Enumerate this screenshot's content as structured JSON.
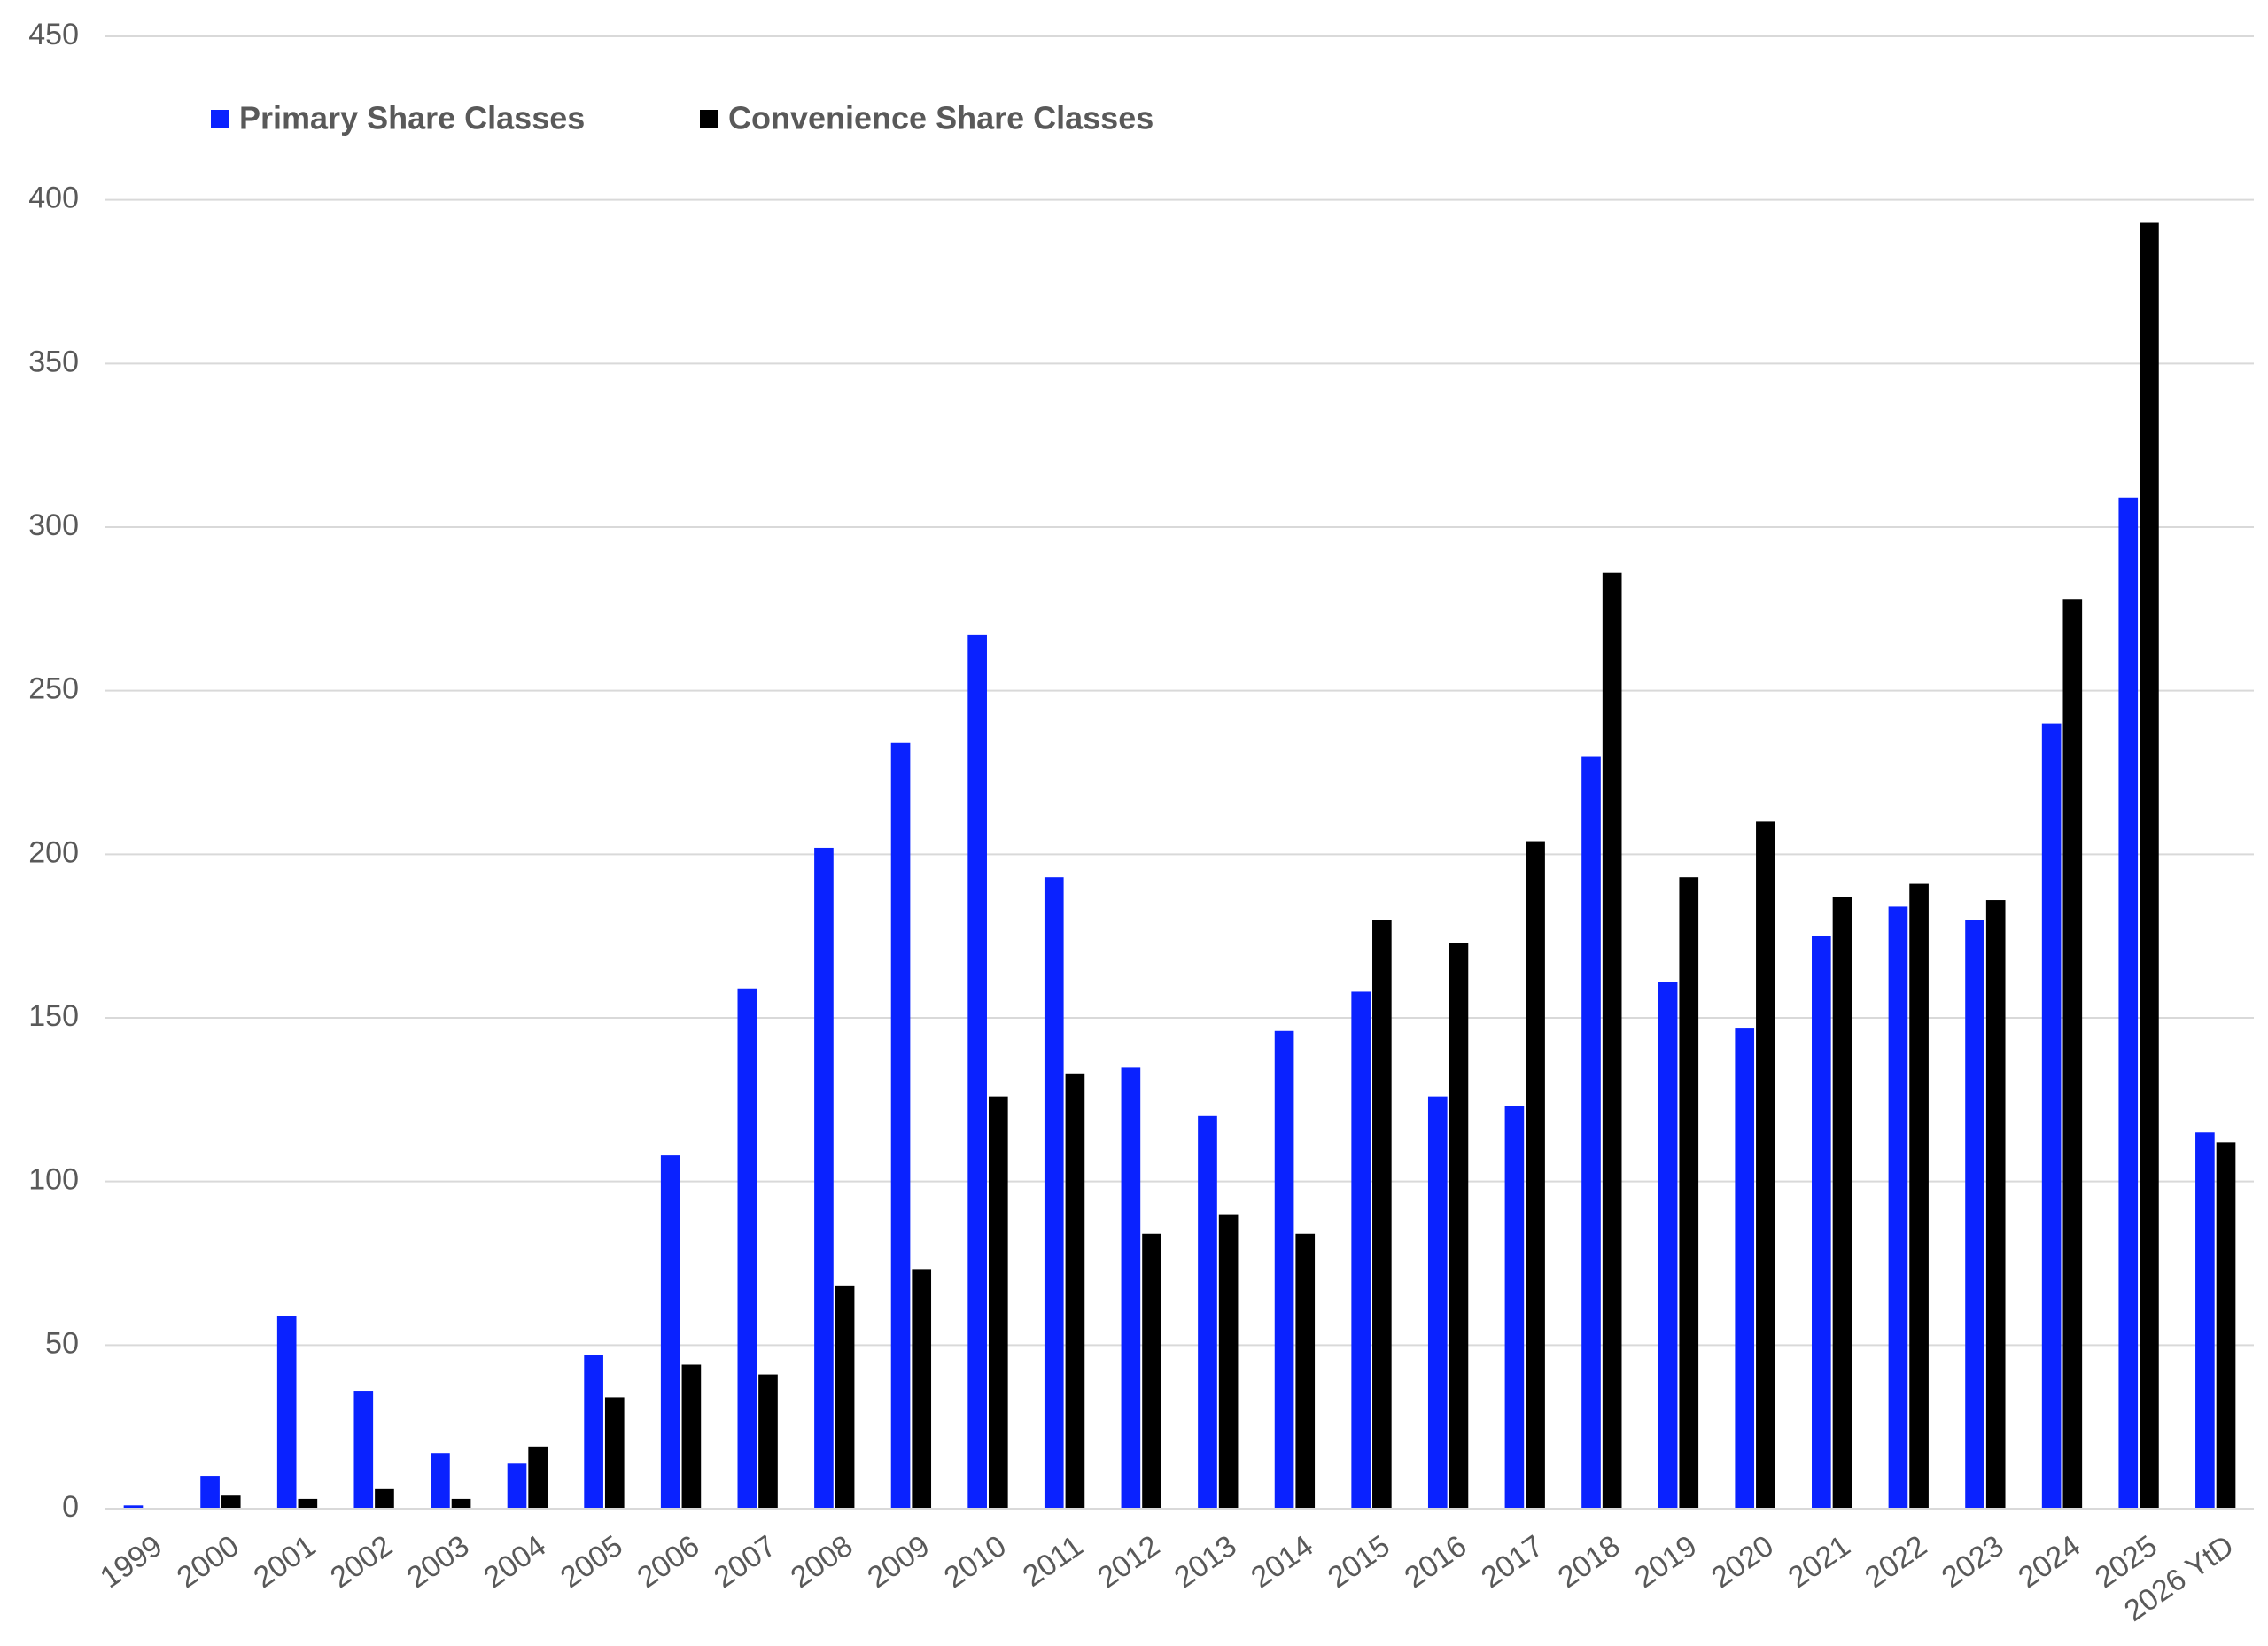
{
  "chart_data": {
    "type": "bar",
    "categories": [
      "1999",
      "2000",
      "2001",
      "2002",
      "2003",
      "2004",
      "2005",
      "2006",
      "2007",
      "2008",
      "2009",
      "2010",
      "2011",
      "2012",
      "2013",
      "2014",
      "2015",
      "2016",
      "2017",
      "2018",
      "2019",
      "2020",
      "2021",
      "2022",
      "2023",
      "2024",
      "2025",
      "2026 YtD"
    ],
    "series": [
      {
        "name": "Primary Share Classes",
        "color": "#0a22ff",
        "values": [
          1,
          10,
          59,
          36,
          17,
          14,
          47,
          108,
          159,
          202,
          234,
          267,
          193,
          135,
          120,
          146,
          158,
          126,
          123,
          230,
          161,
          147,
          175,
          184,
          180,
          240,
          309,
          115
        ]
      },
      {
        "name": "Convenience Share Classes",
        "color": "#000000",
        "values": [
          0,
          4,
          3,
          6,
          3,
          19,
          34,
          44,
          41,
          68,
          73,
          126,
          133,
          84,
          90,
          84,
          180,
          173,
          204,
          286,
          193,
          210,
          187,
          191,
          186,
          278,
          393,
          112
        ]
      }
    ],
    "ylim": [
      0,
      450
    ],
    "yticks": [
      0,
      50,
      100,
      150,
      200,
      250,
      300,
      350,
      400,
      450
    ],
    "grid": true,
    "legend": "top-left"
  }
}
